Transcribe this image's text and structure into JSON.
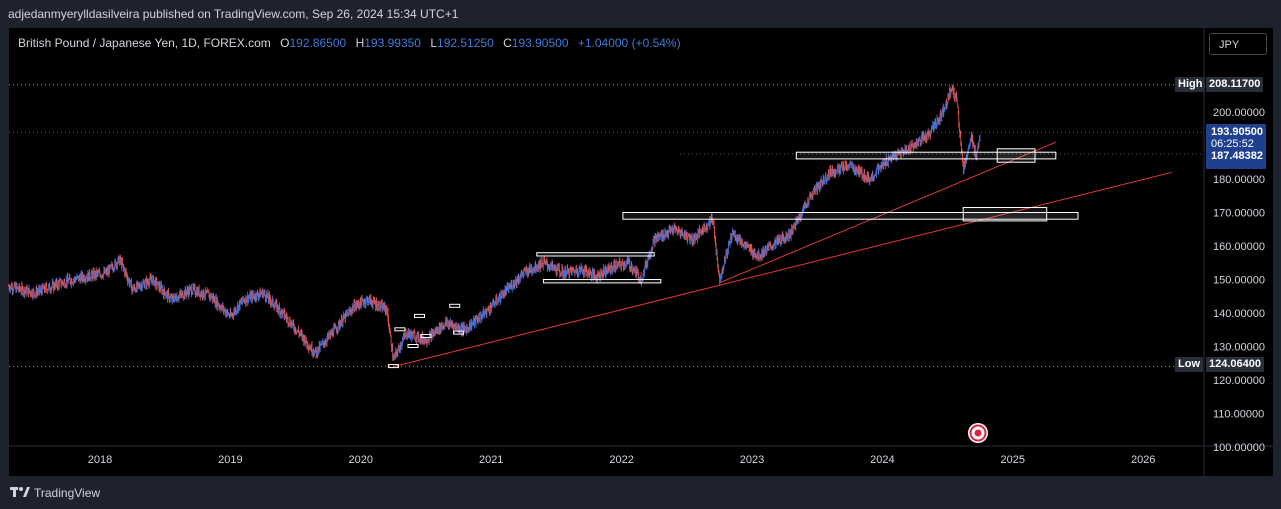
{
  "header": {
    "publisher_line": "adjedanmyerylldasilveira published on TradingView.com, Sep 26, 2024 15:34 UTC+1"
  },
  "symbol": {
    "title": "British Pound / Japanese Yen, 1D, FOREX.com",
    "o_label": "O",
    "o_value": "192.86500",
    "h_label": "H",
    "h_value": "193.99350",
    "l_label": "L",
    "l_value": "192.51250",
    "c_label": "C",
    "c_value": "193.90500",
    "change": "+1.04000 (+0.54%)"
  },
  "currency_button": "JPY",
  "price_tags": {
    "high_label": "High",
    "high_value": "208.11700",
    "last_price": "193.90500",
    "countdown": "06:25:52",
    "level": "187.48382",
    "low_label": "Low",
    "low_value": "124.06400"
  },
  "footer": {
    "brand": "TradingView"
  },
  "colors": {
    "up": "#3f6fd6",
    "down": "#e0544f",
    "trendline": "#e0393e",
    "zone": "#ffffff",
    "tag_blue": "#1f3f8f",
    "tag_dark": "#2a2e39"
  },
  "chart_data": {
    "type": "candlestick",
    "y_axis_ticks": [
      "100.00000",
      "110.00000",
      "120.00000",
      "130.00000",
      "140.00000",
      "150.00000",
      "160.00000",
      "170.00000",
      "180.00000",
      "200.00000"
    ],
    "x_axis_ticks": [
      "2018",
      "2019",
      "2020",
      "2021",
      "2022",
      "2023",
      "2024",
      "2025",
      "2026"
    ],
    "ylim": [
      100,
      210
    ],
    "price_path": [
      [
        2017.3,
        148
      ],
      [
        2017.5,
        146
      ],
      [
        2017.7,
        149
      ],
      [
        2017.9,
        151
      ],
      [
        2018.05,
        152
      ],
      [
        2018.15,
        156
      ],
      [
        2018.25,
        147
      ],
      [
        2018.4,
        150
      ],
      [
        2018.55,
        144
      ],
      [
        2018.7,
        147
      ],
      [
        2018.85,
        145
      ],
      [
        2019.0,
        139
      ],
      [
        2019.1,
        144
      ],
      [
        2019.25,
        146
      ],
      [
        2019.4,
        140
      ],
      [
        2019.55,
        133
      ],
      [
        2019.65,
        128
      ],
      [
        2019.8,
        135
      ],
      [
        2019.95,
        142
      ],
      [
        2020.05,
        144
      ],
      [
        2020.2,
        141
      ],
      [
        2020.25,
        126
      ],
      [
        2020.35,
        134
      ],
      [
        2020.5,
        132
      ],
      [
        2020.65,
        137
      ],
      [
        2020.8,
        135
      ],
      [
        2020.95,
        140
      ],
      [
        2021.1,
        146
      ],
      [
        2021.25,
        152
      ],
      [
        2021.4,
        155
      ],
      [
        2021.55,
        152
      ],
      [
        2021.7,
        153
      ],
      [
        2021.8,
        151
      ],
      [
        2021.95,
        154
      ],
      [
        2022.05,
        155
      ],
      [
        2022.15,
        150
      ],
      [
        2022.25,
        162
      ],
      [
        2022.4,
        165
      ],
      [
        2022.55,
        162
      ],
      [
        2022.7,
        168
      ],
      [
        2022.75,
        150
      ],
      [
        2022.85,
        164
      ],
      [
        2022.95,
        160
      ],
      [
        2023.05,
        157
      ],
      [
        2023.15,
        160
      ],
      [
        2023.3,
        164
      ],
      [
        2023.45,
        175
      ],
      [
        2023.6,
        182
      ],
      [
        2023.75,
        184
      ],
      [
        2023.9,
        180
      ],
      [
        2024.05,
        186
      ],
      [
        2024.2,
        189
      ],
      [
        2024.35,
        193
      ],
      [
        2024.45,
        199
      ],
      [
        2024.53,
        207
      ],
      [
        2024.57,
        204
      ],
      [
        2024.62,
        183
      ],
      [
        2024.68,
        192
      ],
      [
        2024.72,
        187
      ],
      [
        2024.75,
        194
      ]
    ],
    "annotations": {
      "high_line": 208.117,
      "low_line": 124.064,
      "last_price_line": 193.905,
      "level_line": 187.48382,
      "zones": [
        {
          "x0": 2021.35,
          "x1": 2022.25,
          "y0": 157,
          "y1": 158
        },
        {
          "x0": 2021.4,
          "x1": 2022.3,
          "y0": 149,
          "y1": 150
        },
        {
          "x0": 2022.01,
          "x1": 2025.5,
          "y0": 168,
          "y1": 170
        },
        {
          "x0": 2024.62,
          "x1": 2025.26,
          "y0": 167.5,
          "y1": 171.5
        },
        {
          "x0": 2023.34,
          "x1": 2025.33,
          "y0": 186,
          "y1": 188
        },
        {
          "x0": 2024.88,
          "x1": 2025.17,
          "y0": 185,
          "y1": 189
        }
      ],
      "trendlines": [
        {
          "x0": 2020.25,
          "y0": 124,
          "x1": 2026.22,
          "y1": 182
        },
        {
          "x0": 2022.75,
          "y0": 149,
          "x1": 2025.33,
          "y1": 191
        }
      ]
    }
  }
}
